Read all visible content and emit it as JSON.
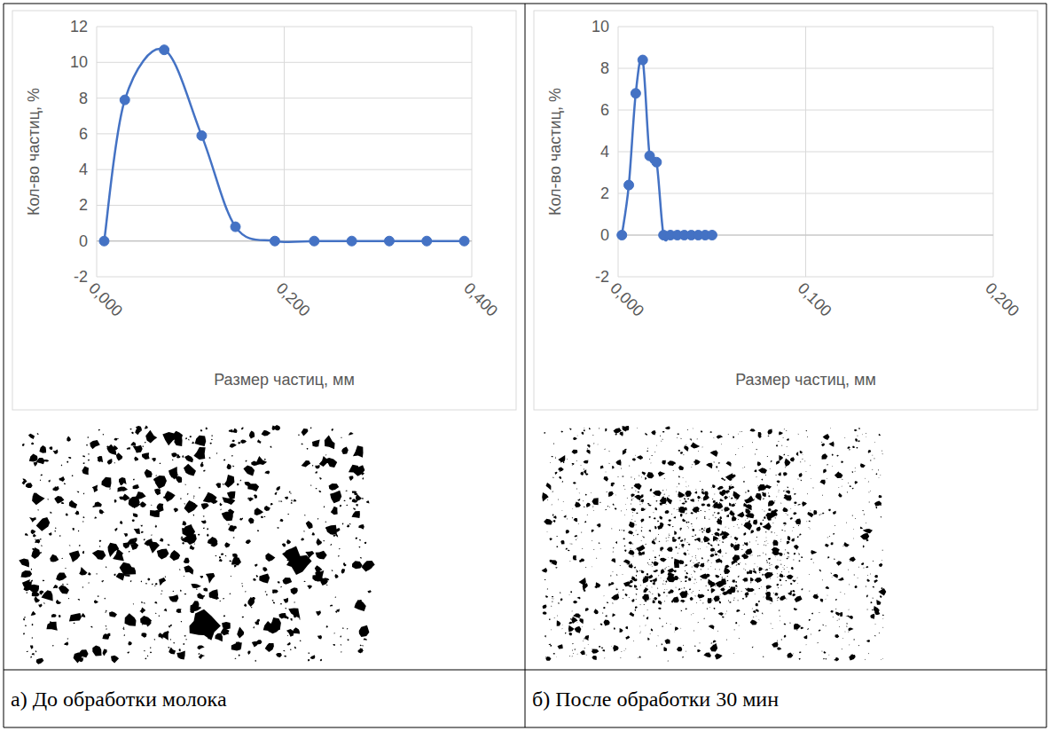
{
  "chart_data": [
    {
      "type": "line",
      "x_label": "Размер частиц, мм",
      "y_label": "Кол-во частиц, %",
      "x": [
        0.008,
        0.03,
        0.072,
        0.112,
        0.148,
        0.19,
        0.232,
        0.272,
        0.312,
        0.352,
        0.392
      ],
      "values": [
        0,
        7.9,
        10.7,
        5.9,
        0.8,
        0,
        0,
        0,
        0,
        0,
        0
      ],
      "color": "#4472c4",
      "marker": "circle",
      "line_style": "smooth",
      "xlim": [
        0,
        0.4
      ],
      "xticks": [
        {
          "value": 0,
          "label": "0,000"
        },
        {
          "value": 0.2,
          "label": "0,200"
        },
        {
          "value": 0.4,
          "label": "0,400"
        }
      ],
      "ylim": [
        -2,
        12
      ],
      "yticks": [
        -2,
        0,
        2,
        4,
        6,
        8,
        10,
        12
      ],
      "grid": true
    },
    {
      "type": "line",
      "x_label": "Размер частиц, мм",
      "y_label": "Кол-во частиц, %",
      "x": [
        0.002,
        0.0057,
        0.0094,
        0.0131,
        0.0168,
        0.0205,
        0.0242,
        0.0279,
        0.0316,
        0.0353,
        0.039,
        0.0427,
        0.0464,
        0.0501
      ],
      "values": [
        0,
        2.4,
        6.8,
        8.4,
        3.8,
        3.5,
        0,
        0,
        0,
        0,
        0,
        0,
        0,
        0
      ],
      "color": "#4472c4",
      "marker": "circle",
      "line_style": "smooth",
      "xlim": [
        0,
        0.2
      ],
      "xticks": [
        {
          "value": 0,
          "label": "0,000"
        },
        {
          "value": 0.1,
          "label": "0,100"
        },
        {
          "value": 0.2,
          "label": "0,200"
        }
      ],
      "ylim": [
        -2,
        10
      ],
      "yticks": [
        -2,
        0,
        2,
        4,
        6,
        8,
        10
      ],
      "grid": true
    }
  ],
  "captions": [
    "а) До обработки молока",
    "б) После обработки 30 мин"
  ]
}
